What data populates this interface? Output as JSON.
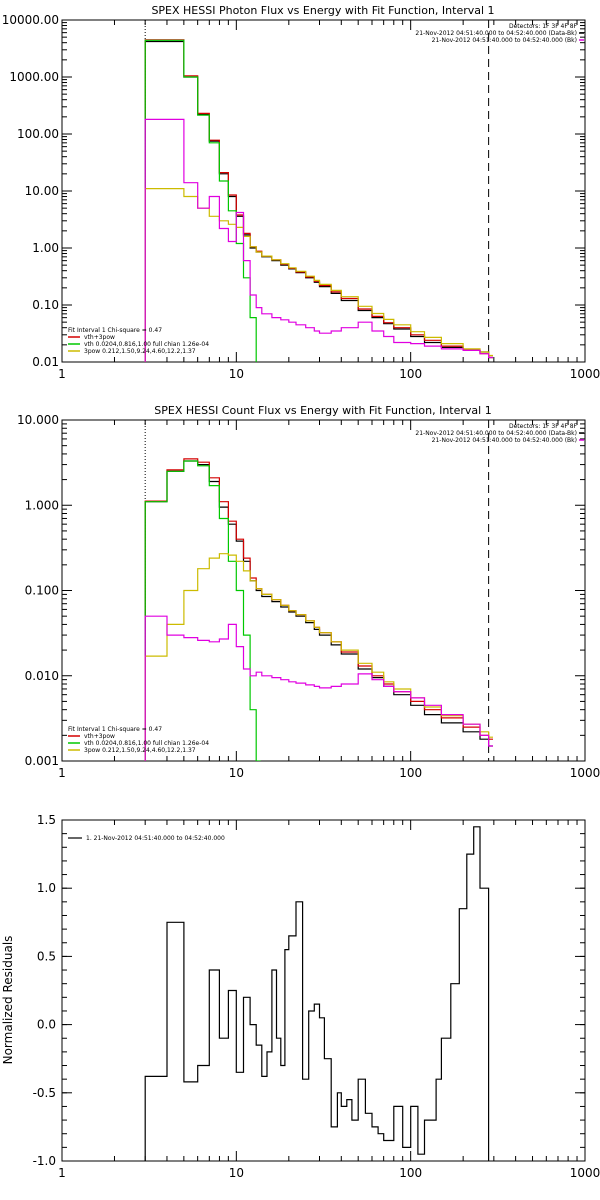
{
  "chart_data": [
    {
      "type": "line",
      "title": "SPEX HESSI Photon Flux vs Energy with Fit Function, Interval 1",
      "xlabel": "",
      "ylabel": "",
      "xscale": "log",
      "yscale": "log",
      "xlim": [
        1,
        1000
      ],
      "ylim": [
        0.01,
        10000
      ],
      "xticks": [
        "1",
        "10",
        "100",
        "1000"
      ],
      "yticks": [
        "10000.00",
        "1000.00",
        "100.00",
        "10.00",
        "1.00",
        "0.10",
        "0.01"
      ],
      "vlines": [
        {
          "x": 3,
          "style": "dotted"
        },
        {
          "x": 280,
          "style": "dashed"
        }
      ],
      "info_text": [
        "Detectors: 1F 3F 4F 8F",
        "21-Nov-2012 04:51:40.000 to 04:52:40.000 (Data-Bk)",
        "21-Nov-2012 04:51:40.000 to 04:52:40.000 (Bk)"
      ],
      "legend_lines": [
        "Fit Interval 1   Chi-square = 0.47",
        "vth+3pow",
        "vth 0.0204,0.816,1.00  full chian 1.26e-04",
        "3pow 0.212,1.50,9.24,4.60,12.2,1.37"
      ],
      "series": [
        {
          "name": "Data-Bk",
          "color": "#000000",
          "x": [
            3,
            4,
            5,
            6,
            7,
            8,
            9,
            10,
            11,
            12,
            13,
            14,
            16,
            18,
            20,
            22,
            25,
            28,
            30,
            35,
            40,
            50,
            60,
            70,
            80,
            100,
            120,
            150,
            200,
            250,
            280
          ],
          "y": [
            4200,
            4200,
            1000,
            220,
            75,
            20,
            8,
            3.6,
            1.7,
            1.0,
            0.85,
            0.7,
            0.6,
            0.5,
            0.43,
            0.37,
            0.3,
            0.25,
            0.21,
            0.16,
            0.12,
            0.08,
            0.06,
            0.047,
            0.038,
            0.028,
            0.022,
            0.018,
            0.016,
            0.015,
            0.012
          ]
        },
        {
          "name": "vth+3pow",
          "color": "#d40000",
          "x": [
            3,
            4,
            5,
            6,
            7,
            8,
            9,
            10,
            11,
            12,
            13,
            14,
            16,
            18,
            20,
            22,
            25,
            28,
            30,
            35,
            40,
            50,
            60,
            70,
            80,
            100,
            120,
            150,
            200,
            250,
            280
          ],
          "y": [
            4500,
            4500,
            1050,
            230,
            78,
            21,
            8.5,
            3.8,
            1.8,
            1.05,
            0.88,
            0.72,
            0.62,
            0.52,
            0.44,
            0.38,
            0.31,
            0.26,
            0.22,
            0.17,
            0.13,
            0.085,
            0.063,
            0.049,
            0.04,
            0.03,
            0.024,
            0.019,
            0.016,
            0.014,
            0.012
          ]
        },
        {
          "name": "vth",
          "color": "#00c800",
          "x": [
            3,
            4,
            5,
            6,
            7,
            8,
            9,
            10,
            11,
            12,
            13
          ],
          "y": [
            4400,
            4400,
            1000,
            215,
            70,
            15,
            4.5,
            1.2,
            0.3,
            0.06,
            0.009
          ]
        },
        {
          "name": "3pow",
          "color": "#ccbb00",
          "x": [
            3,
            4,
            5,
            6,
            7,
            8,
            9,
            10,
            11,
            12,
            13,
            14,
            16,
            18,
            20,
            22,
            25,
            28,
            30,
            35,
            40,
            50,
            60,
            70,
            80,
            100,
            120,
            150,
            200,
            250,
            280
          ],
          "y": [
            11,
            11,
            8,
            5,
            3.6,
            3,
            2.6,
            2.3,
            1.6,
            1.05,
            0.85,
            0.72,
            0.62,
            0.53,
            0.45,
            0.39,
            0.32,
            0.27,
            0.23,
            0.18,
            0.14,
            0.095,
            0.071,
            0.056,
            0.045,
            0.034,
            0.027,
            0.021,
            0.017,
            0.015,
            0.013
          ]
        },
        {
          "name": "Bk",
          "color": "#e000e0",
          "x": [
            3,
            4,
            5,
            6,
            7,
            8,
            9,
            10,
            11,
            12,
            13,
            14,
            16,
            18,
            20,
            22,
            25,
            28,
            30,
            35,
            40,
            50,
            60,
            70,
            80,
            100,
            120,
            150,
            200,
            250,
            280
          ],
          "y": [
            180,
            180,
            14,
            5,
            8,
            2.2,
            1.3,
            4.2,
            0.6,
            0.15,
            0.09,
            0.07,
            0.06,
            0.055,
            0.05,
            0.045,
            0.04,
            0.035,
            0.032,
            0.035,
            0.04,
            0.05,
            0.035,
            0.028,
            0.022,
            0.021,
            0.019,
            0.017,
            0.016,
            0.014,
            0.012
          ]
        }
      ]
    },
    {
      "type": "line",
      "title": "SPEX HESSI Count Flux vs Energy with Fit Function, Interval 1",
      "xlabel": "",
      "ylabel": "",
      "xscale": "log",
      "yscale": "log",
      "xlim": [
        1,
        1000
      ],
      "ylim": [
        0.001,
        10
      ],
      "xticks": [
        "1",
        "10",
        "100",
        "1000"
      ],
      "yticks": [
        "10.000",
        "1.000",
        "0.100",
        "0.010",
        "0.001"
      ],
      "vlines": [
        {
          "x": 3,
          "style": "dotted"
        },
        {
          "x": 280,
          "style": "dashed"
        }
      ],
      "info_text": [
        "Detectors: 1F 3F 4F 8F",
        "21-Nov-2012 04:51:40.000 to 04:52:40.000 (Data-Bk)",
        "21-Nov-2012 04:51:40.000 to 04:52:40.000 (Bk)"
      ],
      "legend_lines": [
        "Fit Interval 1   Chi-square = 0.47",
        "vth+3pow",
        "vth 0.0204,0.816,1.00  full chian 1.26e-04",
        "3pow 0.212,1.50,9.24,4.60,12.2,1.37"
      ],
      "series": [
        {
          "name": "Data-Bk",
          "color": "#000000",
          "x": [
            3,
            4,
            5,
            6,
            7,
            8,
            9,
            10,
            11,
            12,
            13,
            14,
            16,
            18,
            20,
            22,
            25,
            28,
            30,
            35,
            40,
            50,
            60,
            70,
            80,
            100,
            120,
            150,
            200,
            250,
            280
          ],
          "y": [
            1.1,
            2.5,
            3.3,
            3.0,
            1.9,
            0.95,
            0.6,
            0.38,
            0.22,
            0.13,
            0.1,
            0.085,
            0.074,
            0.064,
            0.056,
            0.05,
            0.042,
            0.035,
            0.03,
            0.023,
            0.018,
            0.012,
            0.0095,
            0.0075,
            0.006,
            0.0045,
            0.0035,
            0.0028,
            0.0022,
            0.0018,
            0.0015
          ]
        },
        {
          "name": "vth+3pow",
          "color": "#d40000",
          "x": [
            3,
            4,
            5,
            6,
            7,
            8,
            9,
            10,
            11,
            12,
            13,
            14,
            16,
            18,
            20,
            22,
            25,
            28,
            30,
            35,
            40,
            50,
            60,
            70,
            80,
            100,
            120,
            150,
            200,
            250,
            280
          ],
          "y": [
            1.12,
            2.6,
            3.5,
            3.2,
            2.1,
            1.1,
            0.65,
            0.4,
            0.24,
            0.14,
            0.105,
            0.09,
            0.078,
            0.067,
            0.058,
            0.052,
            0.044,
            0.037,
            0.032,
            0.025,
            0.019,
            0.013,
            0.01,
            0.008,
            0.0065,
            0.005,
            0.004,
            0.0032,
            0.0025,
            0.002,
            0.0018
          ]
        },
        {
          "name": "vth",
          "color": "#00c800",
          "x": [
            3,
            4,
            5,
            6,
            7,
            8,
            9,
            10,
            11,
            12,
            13
          ],
          "y": [
            1.1,
            2.5,
            3.3,
            2.9,
            1.7,
            0.7,
            0.22,
            0.1,
            0.03,
            0.004,
            0.001
          ]
        },
        {
          "name": "3pow",
          "color": "#ccbb00",
          "x": [
            3,
            4,
            5,
            6,
            7,
            8,
            9,
            10,
            11,
            12,
            13,
            14,
            16,
            18,
            20,
            22,
            25,
            28,
            30,
            35,
            40,
            50,
            60,
            70,
            80,
            100,
            120,
            150,
            200,
            250,
            280
          ],
          "y": [
            0.017,
            0.04,
            0.1,
            0.18,
            0.24,
            0.27,
            0.26,
            0.22,
            0.17,
            0.13,
            0.105,
            0.09,
            0.078,
            0.067,
            0.058,
            0.052,
            0.044,
            0.037,
            0.032,
            0.025,
            0.02,
            0.014,
            0.011,
            0.0085,
            0.007,
            0.0055,
            0.0043,
            0.0034,
            0.0027,
            0.0022,
            0.0019
          ]
        },
        {
          "name": "Bk",
          "color": "#e000e0",
          "x": [
            3,
            4,
            5,
            6,
            7,
            8,
            9,
            10,
            11,
            12,
            13,
            14,
            16,
            18,
            20,
            22,
            25,
            28,
            30,
            35,
            40,
            50,
            60,
            70,
            80,
            100,
            120,
            150,
            200,
            250,
            280
          ],
          "y": [
            0.05,
            0.03,
            0.028,
            0.026,
            0.025,
            0.027,
            0.04,
            0.022,
            0.012,
            0.01,
            0.011,
            0.01,
            0.0095,
            0.009,
            0.0085,
            0.0082,
            0.0078,
            0.0075,
            0.0072,
            0.0075,
            0.008,
            0.0105,
            0.009,
            0.0075,
            0.0065,
            0.0055,
            0.0045,
            0.0035,
            0.0027,
            0.002,
            0.0015
          ]
        }
      ]
    },
    {
      "type": "line",
      "title": "",
      "xlabel": "",
      "ylabel": "Normalized Residuals",
      "xscale": "log",
      "yscale": "linear",
      "xlim": [
        1,
        1000
      ],
      "ylim": [
        -1.0,
        1.5
      ],
      "xticks": [
        "1",
        "10",
        "100",
        "1000"
      ],
      "yticks": [
        "1.5",
        "1.0",
        "0.5",
        "0.0",
        "-0.5",
        "-1.0"
      ],
      "legend_lines": [
        "1. 21-Nov-2012 04:51:40.000 to 04:52:40.000"
      ],
      "series": [
        {
          "name": "1. 21-Nov-2012 04:51:40.000 to 04:52:40.000",
          "color": "#000000",
          "x": [
            3,
            4,
            5,
            6,
            7,
            8,
            9,
            10,
            11,
            12,
            13,
            14,
            15,
            16,
            17,
            18,
            19,
            20,
            22,
            24,
            26,
            28,
            30,
            32,
            35,
            38,
            40,
            43,
            46,
            50,
            55,
            60,
            65,
            70,
            80,
            90,
            100,
            110,
            120,
            130,
            140,
            150,
            170,
            190,
            210,
            230,
            250,
            280
          ],
          "y": [
            -0.38,
            0.75,
            -0.42,
            -0.3,
            0.4,
            -0.1,
            0.25,
            -0.35,
            0.2,
            0.0,
            -0.15,
            -0.38,
            -0.2,
            0.4,
            -0.1,
            -0.3,
            0.55,
            0.65,
            0.9,
            -0.4,
            0.1,
            0.15,
            0.05,
            -0.25,
            -0.75,
            -0.5,
            -0.6,
            -0.55,
            -0.7,
            -0.4,
            -0.65,
            -0.75,
            -0.8,
            -0.85,
            -0.6,
            -0.9,
            -0.6,
            -0.95,
            -0.7,
            -0.7,
            -0.4,
            -0.1,
            0.3,
            0.85,
            1.25,
            1.45,
            1.0,
            -1.05
          ]
        }
      ]
    }
  ]
}
